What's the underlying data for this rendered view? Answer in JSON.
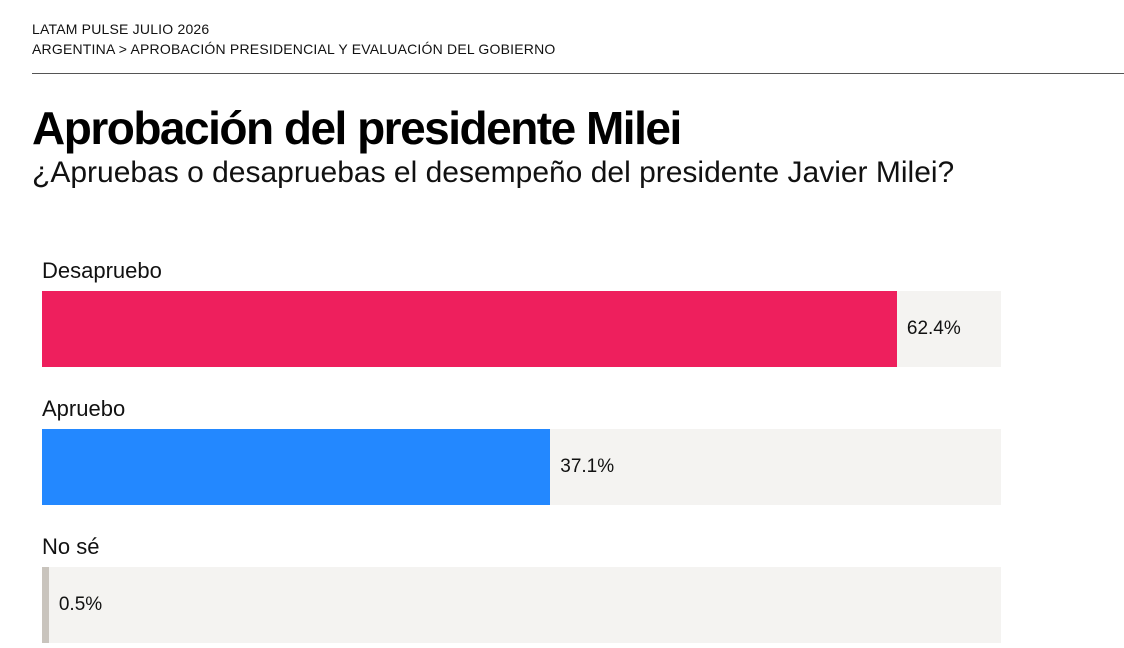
{
  "header": {
    "kicker": "LATAM PULSE JULIO 2026",
    "breadcrumb": "ARGENTINA > APROBACIÓN PRESIDENCIAL Y EVALUACIÓN DEL GOBIERNO"
  },
  "chart_data": {
    "type": "bar",
    "orientation": "horizontal",
    "title": "Aprobación del presidente Milei",
    "subtitle": "¿Apruebas o desapruebas el desempeño del presidente Javier Milei?",
    "categories": [
      "Desapruebo",
      "Apruebo",
      "No sé"
    ],
    "values": [
      62.4,
      37.1,
      0.5
    ],
    "value_labels": [
      "62.4%",
      "37.1%",
      "0.5%"
    ],
    "colors": [
      "#ee1f5d",
      "#2388ff",
      "#c9c4bd"
    ],
    "track_color": "#f4f3f1",
    "xlim": [
      0,
      70
    ],
    "grid": false,
    "legend": "none"
  }
}
